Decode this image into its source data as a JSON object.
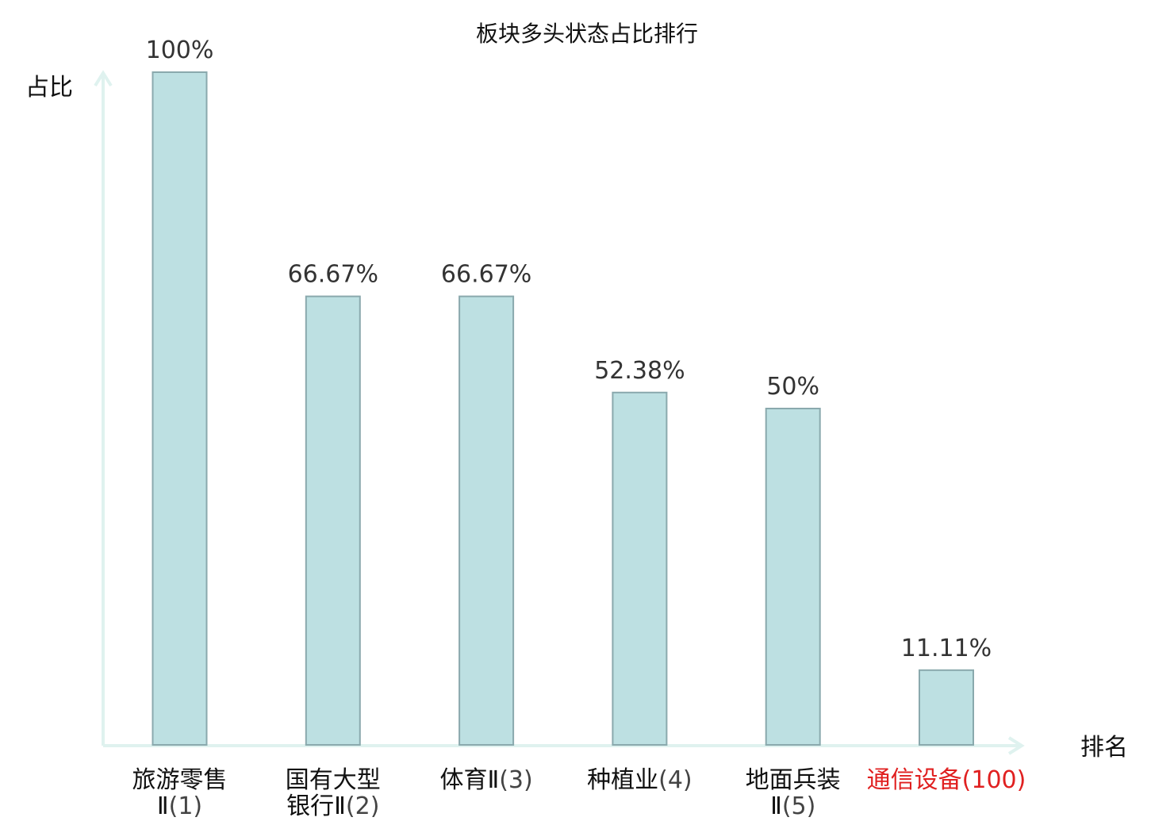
{
  "chart_data": {
    "type": "bar",
    "title": "板块多头状态占比排行",
    "ylabel": "占比",
    "xlabel": "排名",
    "ylim": [
      0,
      100
    ],
    "categories": [
      {
        "name_lines": [
          "旅游零售",
          "Ⅱ"
        ],
        "rank": "(1)",
        "highlight": false
      },
      {
        "name_lines": [
          "国有大型",
          "银行Ⅱ"
        ],
        "rank": "(2)",
        "highlight": false
      },
      {
        "name_lines": [
          "体育Ⅱ"
        ],
        "rank": "(3)",
        "highlight": false
      },
      {
        "name_lines": [
          "种植业"
        ],
        "rank": "(4)",
        "highlight": false
      },
      {
        "name_lines": [
          "地面兵装",
          "Ⅱ"
        ],
        "rank": "(5)",
        "highlight": false
      },
      {
        "name_lines": [
          "通信设备"
        ],
        "rank": "(100)",
        "highlight": true
      }
    ],
    "values": [
      100,
      66.67,
      66.67,
      52.38,
      50,
      11.11
    ],
    "value_labels": [
      "100%",
      "66.67%",
      "66.67%",
      "52.38%",
      "50%",
      "11.11%"
    ],
    "colors": {
      "bar_fill": "#bde0e2",
      "bar_stroke": "#8aa9ad",
      "axis": "#dff2ef",
      "highlight_text": "#e02020"
    }
  }
}
